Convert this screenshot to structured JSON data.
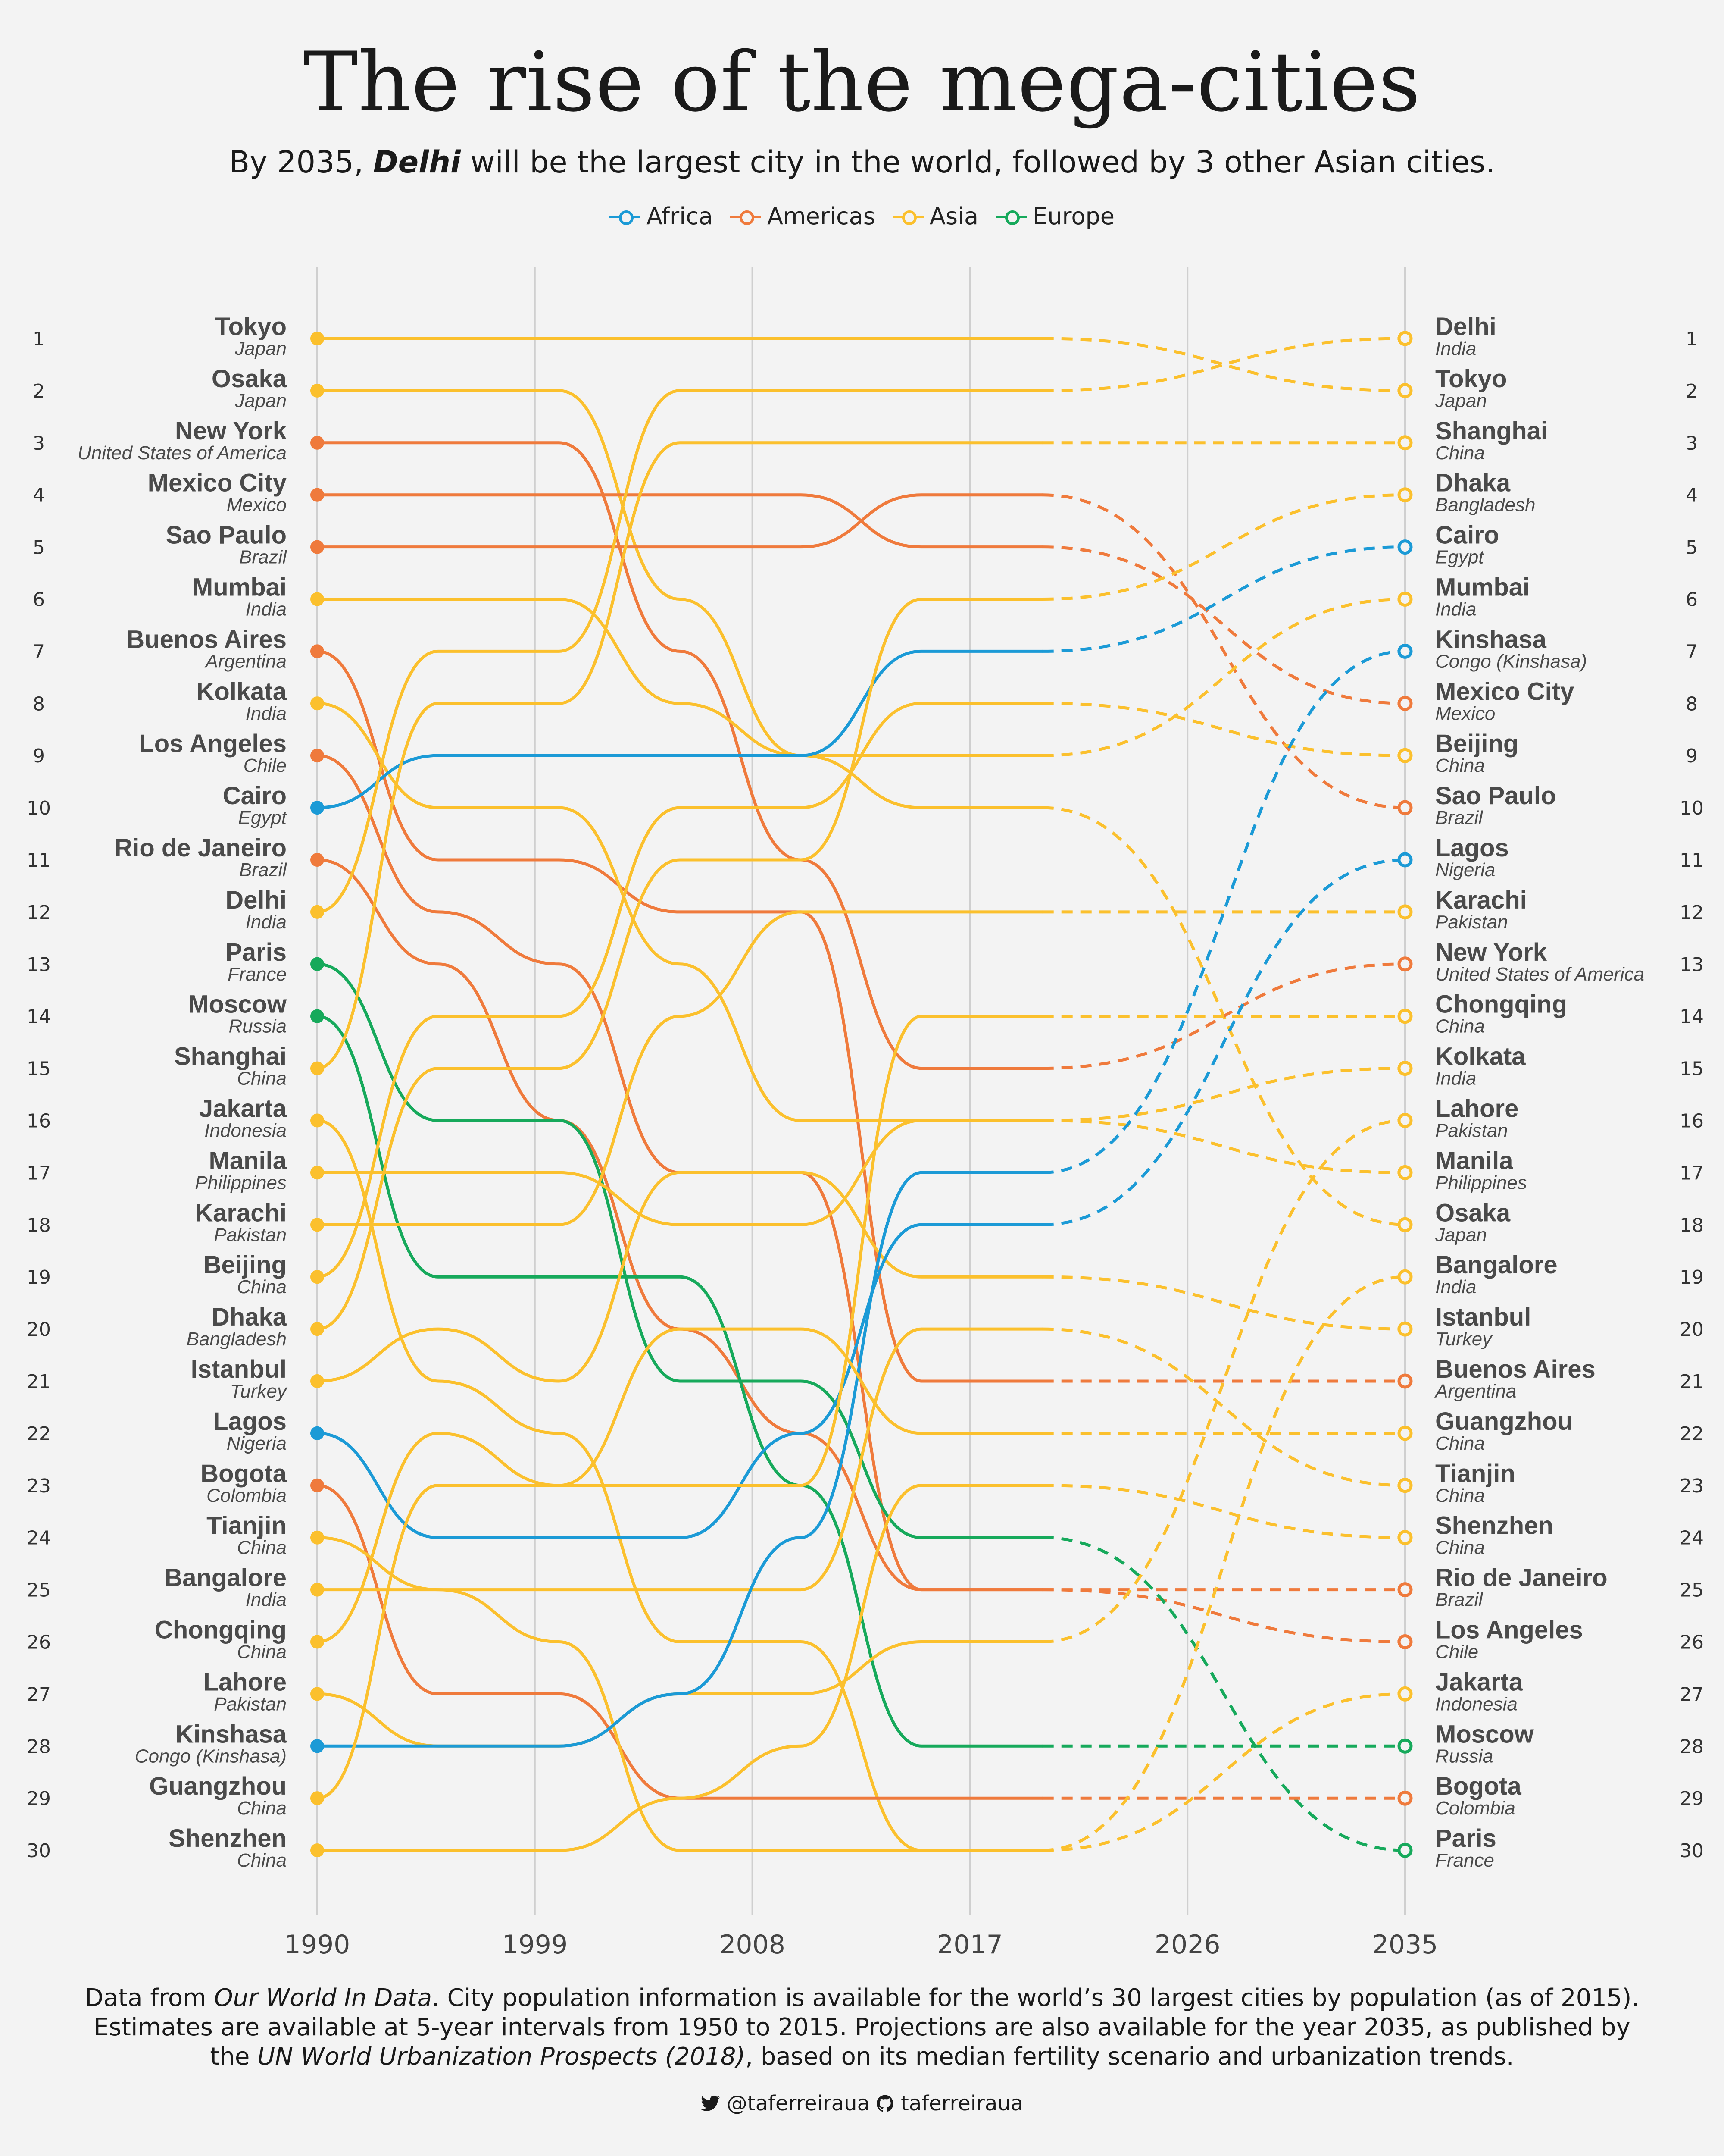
{
  "header": {
    "title": "The rise of the mega-cities",
    "subtitle_pre": "By 2035, ",
    "subtitle_bold": "Delhi",
    "subtitle_post": " will be the largest city in the world, followed by 3 other Asian cities."
  },
  "legend": [
    {
      "label": "Africa",
      "color": "#1b9ad6"
    },
    {
      "label": "Americas",
      "color": "#ef7a3c"
    },
    {
      "label": "Asia",
      "color": "#fbc02d"
    },
    {
      "label": "Europe",
      "color": "#16a95b"
    }
  ],
  "chart_data": {
    "type": "bump",
    "x_ticks": [
      "1990",
      "1999",
      "2008",
      "2017",
      "2026",
      "2035"
    ],
    "rank_labels": [
      "1",
      "2",
      "3",
      "4",
      "5",
      "6",
      "7",
      "8",
      "9",
      "10",
      "11",
      "12",
      "13",
      "14",
      "15",
      "16",
      "17",
      "18",
      "19",
      "20",
      "21",
      "22",
      "23",
      "24",
      "25",
      "26",
      "27",
      "28",
      "29",
      "30"
    ],
    "region_colors": {
      "Africa": "#1b9ad6",
      "Americas": "#ef7a3c",
      "Asia": "#fbc02d",
      "Europe": "#16a95b"
    },
    "years": [
      1990,
      1995,
      2000,
      2005,
      2010,
      2015,
      2035
    ],
    "projection_year": 2035,
    "series": [
      {
        "name": "Tokyo",
        "country": "Japan",
        "region": "Asia",
        "ranks": [
          1,
          1,
          1,
          1,
          1,
          1,
          2
        ]
      },
      {
        "name": "Osaka",
        "country": "Japan",
        "region": "Asia",
        "ranks": [
          2,
          2,
          2,
          6,
          9,
          10,
          18
        ]
      },
      {
        "name": "New York",
        "country": "United States of America",
        "region": "Americas",
        "ranks": [
          3,
          3,
          3,
          7,
          11,
          15,
          13
        ]
      },
      {
        "name": "Mexico City",
        "country": "Mexico",
        "region": "Americas",
        "ranks": [
          4,
          4,
          4,
          4,
          4,
          5,
          8
        ]
      },
      {
        "name": "Sao Paulo",
        "country": "Brazil",
        "region": "Americas",
        "ranks": [
          5,
          5,
          5,
          5,
          5,
          4,
          10
        ]
      },
      {
        "name": "Mumbai",
        "country": "India",
        "region": "Asia",
        "ranks": [
          6,
          6,
          6,
          8,
          9,
          9,
          6
        ]
      },
      {
        "name": "Buenos Aires",
        "country": "Argentina",
        "region": "Americas",
        "ranks": [
          7,
          11,
          11,
          12,
          12,
          21,
          21
        ]
      },
      {
        "name": "Kolkata",
        "country": "India",
        "region": "Asia",
        "ranks": [
          8,
          10,
          10,
          13,
          16,
          16,
          15
        ]
      },
      {
        "name": "Los Angeles",
        "country": "Chile",
        "region": "Americas",
        "ranks": [
          9,
          12,
          13,
          17,
          17,
          25,
          26
        ]
      },
      {
        "name": "Cairo",
        "country": "Egypt",
        "region": "Africa",
        "ranks": [
          10,
          9,
          9,
          9,
          9,
          7,
          5
        ]
      },
      {
        "name": "Rio de Janeiro",
        "country": "Brazil",
        "region": "Americas",
        "ranks": [
          11,
          13,
          16,
          20,
          22,
          25,
          25
        ]
      },
      {
        "name": "Delhi",
        "country": "India",
        "region": "Asia",
        "ranks": [
          12,
          7,
          7,
          2,
          2,
          2,
          1
        ]
      },
      {
        "name": "Paris",
        "country": "France",
        "region": "Europe",
        "ranks": [
          13,
          16,
          16,
          21,
          21,
          24,
          30
        ]
      },
      {
        "name": "Moscow",
        "country": "Russia",
        "region": "Europe",
        "ranks": [
          14,
          19,
          19,
          19,
          23,
          28,
          28
        ]
      },
      {
        "name": "Shanghai",
        "country": "China",
        "region": "Asia",
        "ranks": [
          15,
          8,
          8,
          3,
          3,
          3,
          3
        ]
      },
      {
        "name": "Jakarta",
        "country": "Indonesia",
        "region": "Asia",
        "ranks": [
          16,
          21,
          22,
          26,
          26,
          30,
          27
        ]
      },
      {
        "name": "Manila",
        "country": "Philippines",
        "region": "Asia",
        "ranks": [
          17,
          17,
          17,
          18,
          18,
          16,
          17
        ]
      },
      {
        "name": "Karachi",
        "country": "Pakistan",
        "region": "Asia",
        "ranks": [
          18,
          18,
          18,
          14,
          12,
          12,
          12
        ]
      },
      {
        "name": "Beijing",
        "country": "China",
        "region": "Asia",
        "ranks": [
          19,
          14,
          14,
          10,
          10,
          8,
          9
        ]
      },
      {
        "name": "Dhaka",
        "country": "Bangladesh",
        "region": "Asia",
        "ranks": [
          20,
          15,
          15,
          11,
          11,
          6,
          4
        ]
      },
      {
        "name": "Istanbul",
        "country": "Turkey",
        "region": "Asia",
        "ranks": [
          21,
          20,
          21,
          17,
          17,
          19,
          20
        ]
      },
      {
        "name": "Lagos",
        "country": "Nigeria",
        "region": "Africa",
        "ranks": [
          22,
          24,
          24,
          24,
          22,
          18,
          11
        ]
      },
      {
        "name": "Bogota",
        "country": "Colombia",
        "region": "Americas",
        "ranks": [
          23,
          27,
          27,
          29,
          29,
          29,
          29
        ]
      },
      {
        "name": "Tianjin",
        "country": "China",
        "region": "Asia",
        "ranks": [
          24,
          25,
          25,
          25,
          25,
          20,
          23
        ]
      },
      {
        "name": "Bangalore",
        "country": "India",
        "region": "Asia",
        "ranks": [
          25,
          25,
          26,
          30,
          30,
          30,
          19
        ]
      },
      {
        "name": "Chongqing",
        "country": "China",
        "region": "Asia",
        "ranks": [
          26,
          22,
          23,
          23,
          23,
          14,
          14
        ]
      },
      {
        "name": "Lahore",
        "country": "Pakistan",
        "region": "Asia",
        "ranks": [
          27,
          28,
          28,
          27,
          27,
          26,
          16
        ]
      },
      {
        "name": "Kinshasa",
        "country": "Congo (Kinshasa)",
        "region": "Africa",
        "ranks": [
          28,
          28,
          28,
          27,
          24,
          17,
          7
        ]
      },
      {
        "name": "Guangzhou",
        "country": "China",
        "region": "Asia",
        "ranks": [
          29,
          23,
          23,
          20,
          20,
          22,
          22
        ]
      },
      {
        "name": "Shenzhen",
        "country": "China",
        "region": "Asia",
        "ranks": [
          30,
          30,
          30,
          29,
          28,
          23,
          24
        ]
      }
    ]
  },
  "footer": {
    "line1_pre": "Data from ",
    "line1_italic": "Our World In Data",
    "line1_post": ". City population information is available for the world’s 30 largest cities by population (as of 2015).",
    "line2": "Estimates are available at 5-year intervals from 1950 to 2015. Projections are also available for the year 2035, as published by",
    "line3_pre": "the ",
    "line3_italic": "UN World Urbanization Prospects (2018)",
    "line3_post": ", based on its median fertility scenario and urbanization trends."
  },
  "credits": {
    "twitter_icon": "twitter-icon",
    "twitter": "@taferreiraua",
    "github_icon": "github-icon",
    "github": "taferreiraua"
  }
}
